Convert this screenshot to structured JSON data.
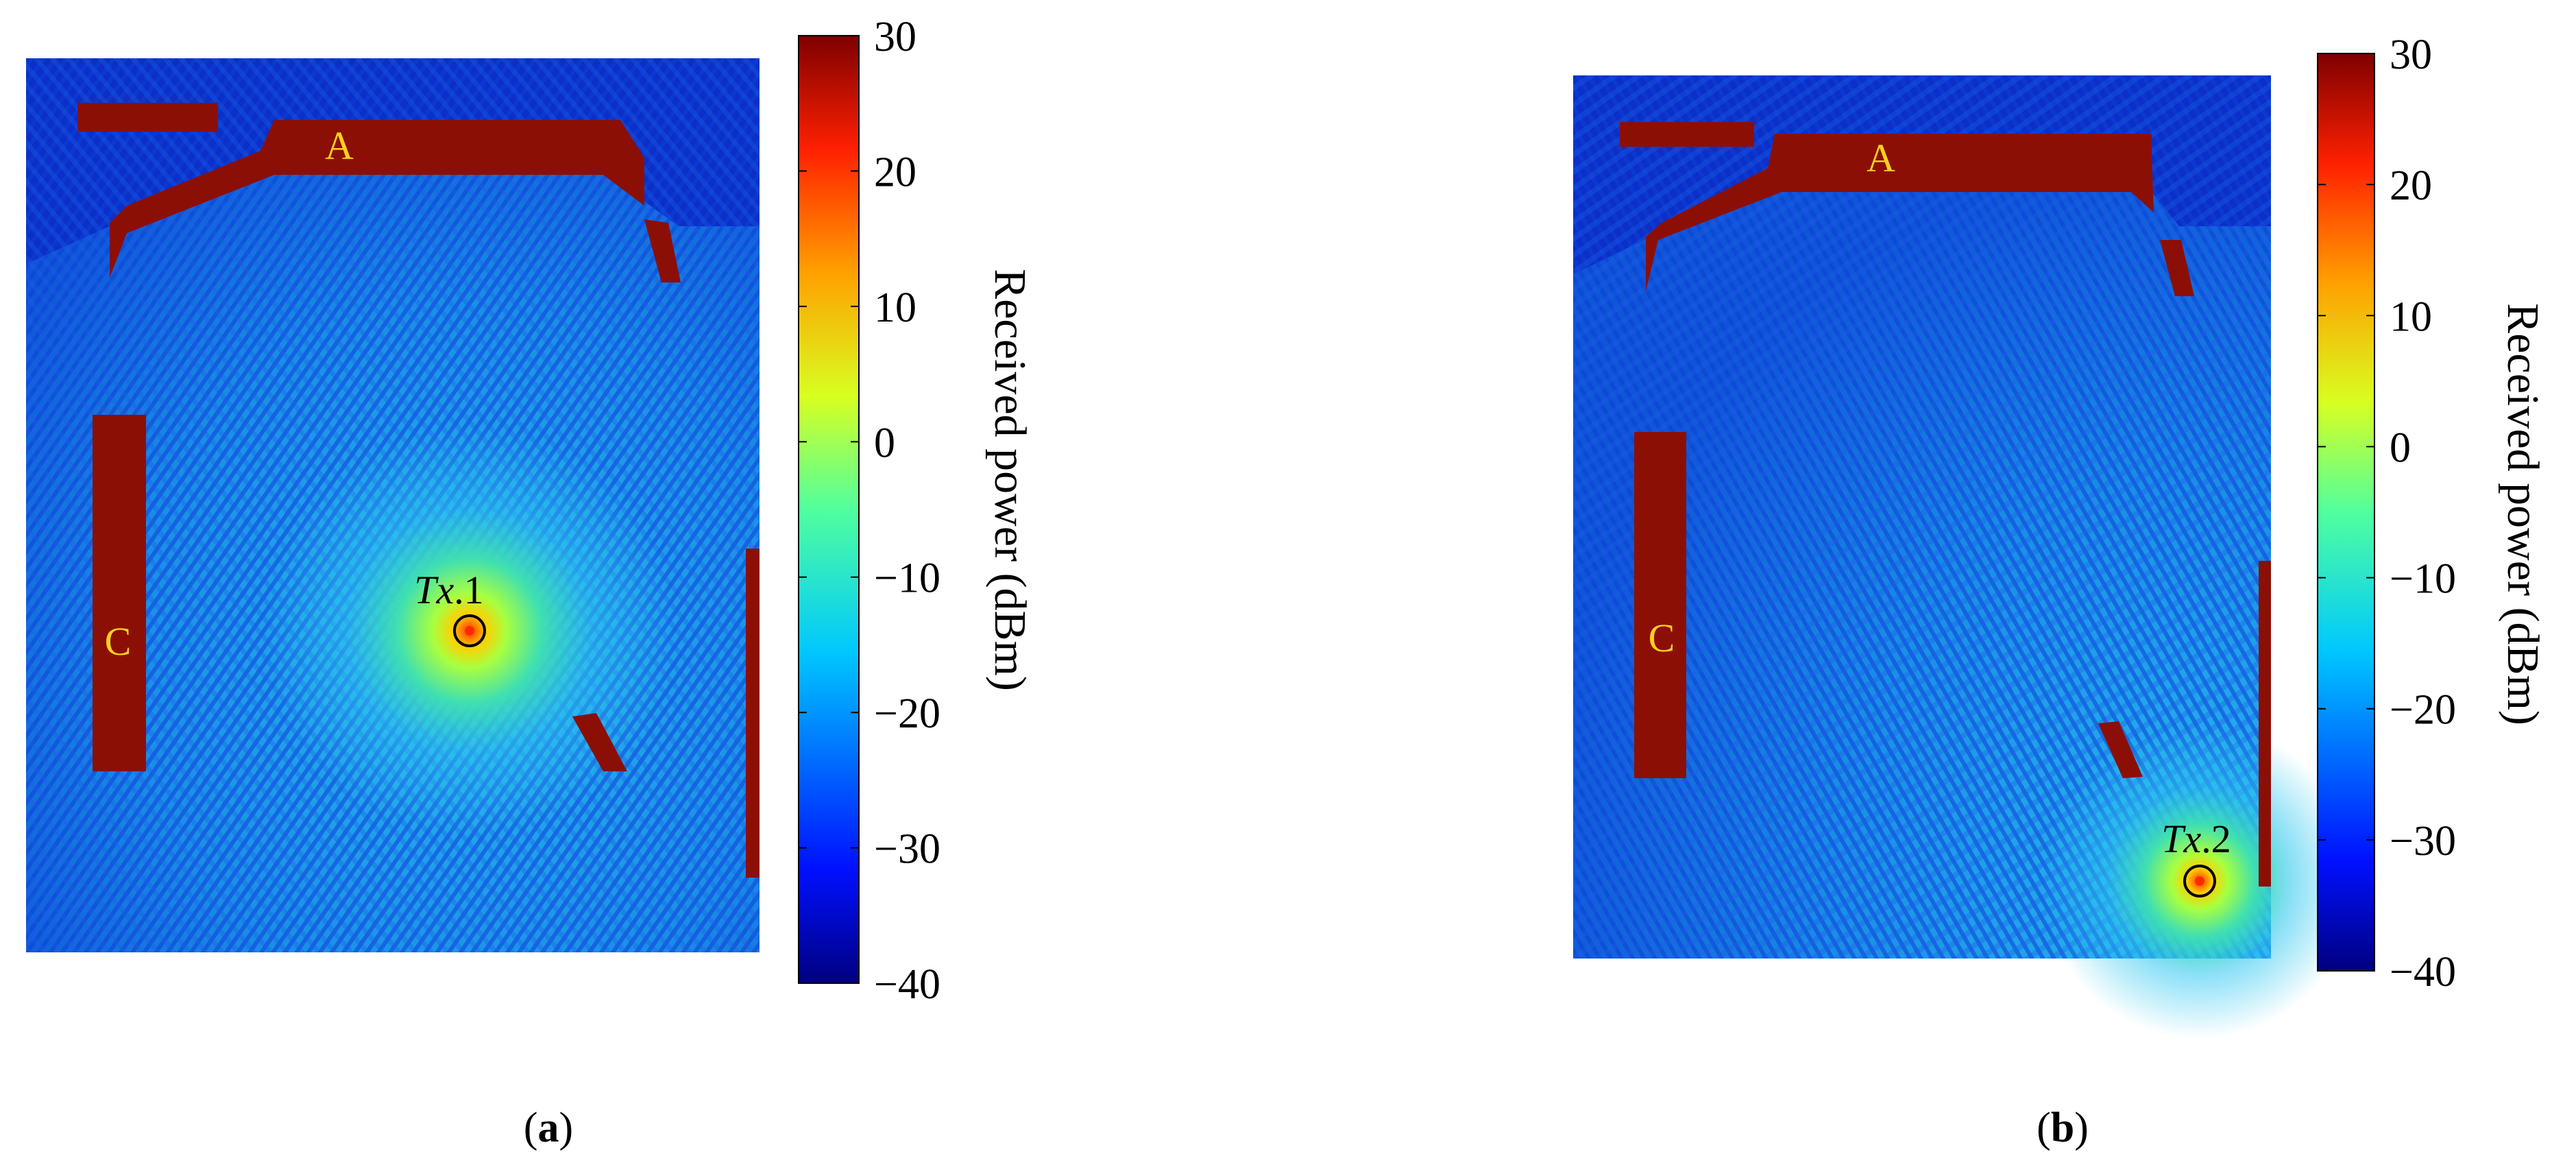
{
  "chart_data": [
    {
      "type": "heatmap",
      "panel_label": "a",
      "colorbar": {
        "label": "Received power (dBm)",
        "min": -40,
        "max": 30,
        "ticks": [
          30,
          20,
          10,
          0,
          -10,
          -20,
          -30,
          -40
        ],
        "tick_labels": [
          "30",
          "20",
          "10",
          "0",
          "−10",
          "−20",
          "−30",
          "−40"
        ],
        "colormap": "jet"
      },
      "annotations": [
        {
          "text": "A",
          "color": "#ffd21e"
        },
        {
          "text": "C",
          "color": "#ffd21e"
        },
        {
          "text_italic": "Tx",
          "text": ".1",
          "kind": "transmitter"
        }
      ],
      "colors": {
        "obstacle": "#8c0f06",
        "background": "#0b2fc8",
        "field": "#19a0ee",
        "hot": "#ff2a00"
      }
    },
    {
      "type": "heatmap",
      "panel_label": "b",
      "colorbar": {
        "label": "Received power (dBm)",
        "min": -40,
        "max": 30,
        "ticks": [
          30,
          20,
          10,
          0,
          -10,
          -20,
          -30,
          -40
        ],
        "tick_labels": [
          "30",
          "20",
          "10",
          "0",
          "−10",
          "−20",
          "−30",
          "−40"
        ],
        "colormap": "jet"
      },
      "annotations": [
        {
          "text": "A",
          "color": "#ffd21e"
        },
        {
          "text": "C",
          "color": "#ffd21e"
        },
        {
          "text_italic": "Tx",
          "text": ".2",
          "kind": "transmitter"
        }
      ],
      "colors": {
        "obstacle": "#8c0f06",
        "background": "#0b2fc8",
        "field": "#19a0ee",
        "hot": "#ff2a00"
      }
    }
  ]
}
